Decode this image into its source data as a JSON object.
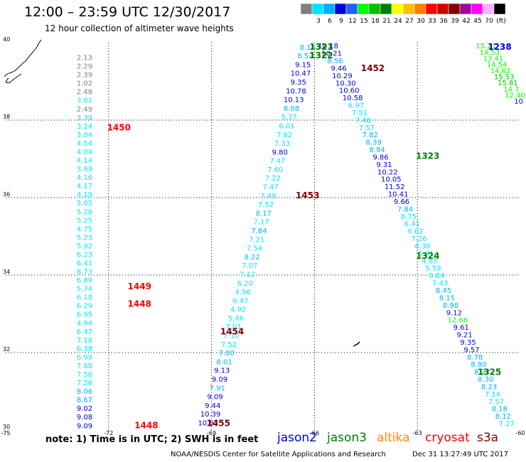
{
  "header": {
    "title": "12:00 – 23:59 UTC 12/30/2017",
    "subtitle": "12 hour collection of altimeter wave heights"
  },
  "colorbar": {
    "unit": "(ft)",
    "bins": [
      {
        "label": "",
        "color": "#808080"
      },
      {
        "label": "3",
        "color": "#00e5ff"
      },
      {
        "label": "6",
        "color": "#00b0ff"
      },
      {
        "label": "9",
        "color": "#0000dd"
      },
      {
        "label": "12",
        "color": "#2060ff"
      },
      {
        "label": "15",
        "color": "#00ff00"
      },
      {
        "label": "18",
        "color": "#00c000"
      },
      {
        "label": "21",
        "color": "#008000"
      },
      {
        "label": "24",
        "color": "#ffff00"
      },
      {
        "label": "27",
        "color": "#ffc000"
      },
      {
        "label": "30",
        "color": "#ff8000"
      },
      {
        "label": "33",
        "color": "#ff0000"
      },
      {
        "label": "36",
        "color": "#d00000"
      },
      {
        "label": "39",
        "color": "#800000"
      },
      {
        "label": "42",
        "color": "#a000a0"
      },
      {
        "label": "45",
        "color": "#ff00ff"
      },
      {
        "label": "70",
        "color": "#ffb0ff"
      },
      {
        "label": "",
        "color": "#000000"
      }
    ]
  },
  "footer": {
    "note": "note:  1) Time is in UTC;  2) SWH is in feet",
    "satellites": [
      {
        "name": "jason2",
        "color": "#0000dd"
      },
      {
        "name": "jason3",
        "color": "#008000"
      },
      {
        "name": "altika",
        "color": "#ff8c00"
      },
      {
        "name": "cryosat",
        "color": "#ff0000"
      },
      {
        "name": "s3a",
        "color": "#800000"
      }
    ],
    "agency": "NOAA/NESDIS Center for Satellite Applications and Research",
    "generated": "Dec 31 13:27:49 UTC 2017"
  },
  "chart_data": {
    "type": "scatter",
    "title": "12:00 – 23:59 UTC 12/30/2017",
    "subtitle": "12 hour collection of altimeter wave heights",
    "xlabel": "",
    "ylabel": "",
    "xlim": [
      -75,
      -60
    ],
    "ylim": [
      30,
      40
    ],
    "x_ticks": [
      -75,
      -72,
      -69,
      -66,
      -63,
      -60
    ],
    "y_ticks": [
      30,
      32,
      34,
      36,
      38,
      40
    ],
    "grid": "dotted",
    "tracks": [
      {
        "lon0": -72.7,
        "lat0": 39.55,
        "lon1": -72.7,
        "lat1": 30.05,
        "values": [
          2.13,
          2.29,
          2.39,
          1.02,
          2.48,
          3.01,
          2.49,
          3.39,
          3.24,
          3.04,
          4.54,
          4.04,
          4.14,
          3.89,
          4.16,
          4.17,
          4.19,
          5.05,
          5.28,
          5.25,
          4.75,
          5.23,
          5.92,
          6.23,
          6.41,
          6.73,
          6.89,
          5.74,
          6.18,
          6.29,
          6.95,
          4.94,
          6.47,
          7.18,
          6.38,
          6.99,
          7.68,
          7.56,
          7.26,
          8.06,
          8.67,
          9.02,
          9.08,
          9.09
        ],
        "colors": [
          "#808080",
          "#808080",
          "#808080",
          "#808080",
          "#808080",
          "#00e5ff",
          "#808080",
          "#00e5ff",
          "#00e5ff",
          "#00e5ff",
          "#00e5ff",
          "#00e5ff",
          "#00e5ff",
          "#00e5ff",
          "#00e5ff",
          "#00e5ff",
          "#00e5ff",
          "#00e5ff",
          "#00e5ff",
          "#00e5ff",
          "#00e5ff",
          "#00e5ff",
          "#00e5ff",
          "#00e5ff",
          "#00e5ff",
          "#00e5ff",
          "#00e5ff",
          "#00e5ff",
          "#00e5ff",
          "#00e5ff",
          "#00e5ff",
          "#00e5ff",
          "#00e5ff",
          "#00e5ff",
          "#00e5ff",
          "#00e5ff",
          "#00e5ff",
          "#00e5ff",
          "#00e5ff",
          "#00b0ff",
          "#00b0ff",
          "#0000dd",
          "#0000dd",
          "#0000dd"
        ]
      },
      {
        "lon0": -66.2,
        "lat0": 39.82,
        "lon1": -69.1,
        "lat1": 30.12,
        "values": [
          8.18,
          8.52,
          9.15,
          10.47,
          9.35,
          10.78,
          10.13,
          8.08,
          5.37,
          6.01,
          7.62,
          7.33,
          9.8,
          7.47,
          7.6,
          7.22,
          7.47,
          7.49,
          7.52,
          8.17,
          7.17,
          7.84,
          7.21,
          7.54,
          8.22,
          7.07,
          7.12,
          6.2,
          4.96,
          6.47,
          4.92,
          5.46,
          7.01,
          7.1,
          7.52,
          7.8,
          8.01,
          9.13,
          9.09,
          7.91,
          9.09,
          9.44,
          10.39,
          10.67
        ],
        "colors": [
          "#00b0ff",
          "#00b0ff",
          "#0000dd",
          "#0000dd",
          "#0000dd",
          "#0000dd",
          "#0000dd",
          "#00b0ff",
          "#00e5ff",
          "#00e5ff",
          "#00e5ff",
          "#00e5ff",
          "#0000dd",
          "#00e5ff",
          "#00e5ff",
          "#00e5ff",
          "#00e5ff",
          "#00e5ff",
          "#00e5ff",
          "#00b0ff",
          "#00e5ff",
          "#00b0ff",
          "#00e5ff",
          "#00e5ff",
          "#00b0ff",
          "#00e5ff",
          "#00e5ff",
          "#00e5ff",
          "#00e5ff",
          "#00e5ff",
          "#00e5ff",
          "#00e5ff",
          "#00e5ff",
          "#00e5ff",
          "#00e5ff",
          "#00b0ff",
          "#00b0ff",
          "#0000dd",
          "#0000dd",
          "#00b0ff",
          "#0000dd",
          "#0000dd",
          "#0000dd",
          "#0000dd"
        ]
      },
      {
        "lon0": -65.6,
        "lat0": 39.85,
        "lon1": -60.4,
        "lat1": 30.1,
        "values": [
          10.18,
          10.21,
          8.56,
          9.46,
          10.29,
          10.3,
          10.6,
          10.58,
          6.97,
          7.51,
          7.48,
          7.57,
          7.82,
          8.39,
          8.94,
          9.86,
          9.31,
          10.22,
          10.05,
          11.52,
          10.41,
          9.66,
          7.84,
          6.75,
          6.41,
          6.62,
          7.26,
          6.3,
          5.31,
          4.85,
          5.59,
          6.84,
          7.43,
          8.45,
          8.15,
          8.98,
          9.12,
          12.66,
          9.61,
          9.21,
          9.35,
          9.57,
          8.78,
          8.8,
          8.22,
          8.3,
          8.23,
          7.14,
          7.57,
          8.18,
          8.12,
          7.27
        ],
        "colors": [
          "#0000dd",
          "#0000dd",
          "#00b0ff",
          "#0000dd",
          "#0000dd",
          "#0000dd",
          "#0000dd",
          "#0000dd",
          "#00e5ff",
          "#00e5ff",
          "#00e5ff",
          "#00e5ff",
          "#00b0ff",
          "#00b0ff",
          "#00b0ff",
          "#0000dd",
          "#0000dd",
          "#0000dd",
          "#0000dd",
          "#0000dd",
          "#0000dd",
          "#0000dd",
          "#00b0ff",
          "#00e5ff",
          "#00e5ff",
          "#00e5ff",
          "#00e5ff",
          "#00e5ff",
          "#00e5ff",
          "#00e5ff",
          "#00e5ff",
          "#00e5ff",
          "#00e5ff",
          "#00b0ff",
          "#00b0ff",
          "#00b0ff",
          "#0000dd",
          "#00ff00",
          "#0000dd",
          "#0000dd",
          "#0000dd",
          "#0000dd",
          "#00b0ff",
          "#00b0ff",
          "#00b0ff",
          "#00b0ff",
          "#00b0ff",
          "#00e5ff",
          "#00e5ff",
          "#00b0ff",
          "#00b0ff",
          "#00e5ff"
        ]
      },
      {
        "lon0": -61.0,
        "lat0": 39.85,
        "lon1": -60.05,
        "lat1": 38.42,
        "values": [
          15.21,
          14.53,
          13.41,
          14.54,
          14.62,
          15.53,
          15.81,
          14.7,
          12.4,
          10
        ],
        "colors": [
          "#00ff00",
          "#00ff00",
          "#00ff00",
          "#00ff00",
          "#00ff00",
          "#00c000",
          "#00c000",
          "#00ff00",
          "#00ff00",
          "#0000dd"
        ]
      }
    ],
    "pass_labels": [
      {
        "text": "1450",
        "lon": -71.7,
        "lat": 37.73,
        "color": "#ff0000"
      },
      {
        "text": "1449",
        "lon": -71.1,
        "lat": 33.63,
        "color": "#ff0000"
      },
      {
        "text": "1448",
        "lon": -71.1,
        "lat": 33.18,
        "color": "#ff0000"
      },
      {
        "text": "1448",
        "lon": -70.9,
        "lat": 30.05,
        "color": "#ff0000"
      },
      {
        "text": "1321",
        "lon": -65.8,
        "lat": 39.82,
        "color": "#008000"
      },
      {
        "text": "1322",
        "lon": -65.8,
        "lat": 39.6,
        "color": "#008000"
      },
      {
        "text": "1452",
        "lon": -64.3,
        "lat": 39.27,
        "color": "#800000"
      },
      {
        "text": "1323",
        "lon": -62.7,
        "lat": 37.0,
        "color": "#008000"
      },
      {
        "text": "1453",
        "lon": -66.2,
        "lat": 35.98,
        "color": "#800000"
      },
      {
        "text": "1324",
        "lon": -62.7,
        "lat": 34.42,
        "color": "#008000"
      },
      {
        "text": "1454",
        "lon": -68.4,
        "lat": 32.47,
        "color": "#800000"
      },
      {
        "text": "1325",
        "lon": -60.9,
        "lat": 31.42,
        "color": "#008000"
      },
      {
        "text": "1455",
        "lon": -68.8,
        "lat": 30.1,
        "color": "#800000"
      },
      {
        "text": "1238",
        "lon": -60.6,
        "lat": 39.82,
        "color": "#0000dd"
      }
    ]
  }
}
